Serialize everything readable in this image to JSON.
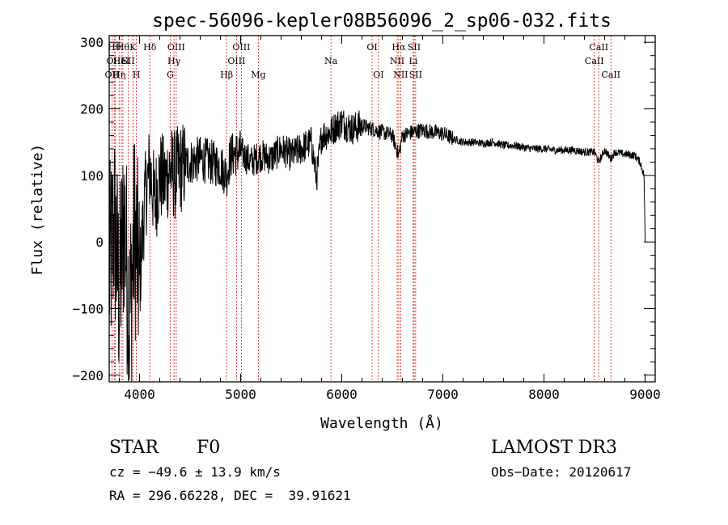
{
  "chart_data": {
    "type": "line",
    "title": "spec-56096-kepler08B56096_2_sp06-032.fits",
    "xlabel": "Wavelength (Å)",
    "ylabel": "Flux (relative)",
    "xlim": [
      3700,
      9100
    ],
    "ylim": [
      -210,
      310
    ],
    "xticks": [
      4000,
      5000,
      6000,
      7000,
      8000,
      9000
    ],
    "yticks": [
      -200,
      -100,
      0,
      100,
      200,
      300
    ],
    "series": [
      {
        "name": "flux",
        "x": [
          3700,
          3750,
          3800,
          3850,
          3900,
          3950,
          4000,
          4050,
          4100,
          4150,
          4200,
          4250,
          4300,
          4350,
          4400,
          4500,
          4600,
          4700,
          4800,
          4861,
          4900,
          5000,
          5100,
          5200,
          5300,
          5400,
          5500,
          5600,
          5700,
          5750,
          5800,
          5890,
          5950,
          6000,
          6050,
          6100,
          6200,
          6300,
          6400,
          6500,
          6563,
          6600,
          6700,
          6800,
          6900,
          7000,
          7100,
          7200,
          7300,
          7400,
          7500,
          7600,
          7700,
          7800,
          7900,
          8000,
          8100,
          8200,
          8300,
          8400,
          8500,
          8542,
          8600,
          8662,
          8700,
          8800,
          8900,
          8950,
          8990,
          9000
        ],
        "y": [
          -50,
          30,
          -80,
          40,
          -120,
          20,
          -60,
          60,
          110,
          60,
          100,
          90,
          110,
          100,
          110,
          120,
          125,
          120,
          115,
          100,
          130,
          135,
          120,
          130,
          125,
          140,
          130,
          140,
          150,
          95,
          160,
          165,
          175,
          180,
          175,
          170,
          175,
          170,
          165,
          160,
          130,
          160,
          165,
          168,
          165,
          163,
          155,
          150,
          150,
          148,
          150,
          145,
          145,
          142,
          140,
          140,
          138,
          138,
          138,
          135,
          135,
          120,
          138,
          125,
          135,
          132,
          130,
          120,
          100,
          0
        ]
      }
    ],
    "lines": [
      {
        "wl": 3727,
        "label": "OII",
        "row": 2
      },
      {
        "wl": 3750,
        "label": "Hθ",
        "row": 0
      },
      {
        "wl": 3760,
        "label": "OIII",
        "row": 1
      },
      {
        "wl": 3798,
        "label": "Hη",
        "row": 2
      },
      {
        "wl": 3820,
        "label": "HeI",
        "row": 1
      },
      {
        "wl": 3835,
        "label": "Hθ",
        "row": 0
      },
      {
        "wl": 3889,
        "label": "SII",
        "row": 1
      },
      {
        "wl": 3934,
        "label": "K",
        "row": 0
      },
      {
        "wl": 3969,
        "label": "H",
        "row": 2
      },
      {
        "wl": 4102,
        "label": "Hδ",
        "row": 0
      },
      {
        "wl": 4304,
        "label": "G",
        "row": 2
      },
      {
        "wl": 4341,
        "label": "Hγ",
        "row": 1
      },
      {
        "wl": 4363,
        "label": "OIII",
        "row": 0
      },
      {
        "wl": 4861,
        "label": "Hβ",
        "row": 2
      },
      {
        "wl": 4959,
        "label": "OIII",
        "row": 1
      },
      {
        "wl": 5007,
        "label": "OIII",
        "row": 0
      },
      {
        "wl": 5175,
        "label": "Mg",
        "row": 2
      },
      {
        "wl": 5893,
        "label": "Na",
        "row": 1
      },
      {
        "wl": 6300,
        "label": "OI",
        "row": 0
      },
      {
        "wl": 6363,
        "label": "OI",
        "row": 2
      },
      {
        "wl": 6548,
        "label": "NII",
        "row": 1
      },
      {
        "wl": 6563,
        "label": "Hα",
        "row": 0
      },
      {
        "wl": 6583,
        "label": "NII",
        "row": 2
      },
      {
        "wl": 6707,
        "label": "Li",
        "row": 1
      },
      {
        "wl": 6716,
        "label": "SII",
        "row": 0
      },
      {
        "wl": 6731,
        "label": "SII",
        "row": 2
      },
      {
        "wl": 8498,
        "label": "CaII",
        "row": 1
      },
      {
        "wl": 8542,
        "label": "CaII",
        "row": 0
      },
      {
        "wl": 8662,
        "label": "CaII",
        "row": 2
      }
    ]
  },
  "info": {
    "class": "STAR",
    "subclass": "F0",
    "survey": "LAMOST DR3",
    "redshift": "cz = −49.6 ± 13.9 km/s",
    "obs_date": "Obs−Date: 20120617",
    "coords": "RA = 296.66228, DEC =  39.91621"
  }
}
